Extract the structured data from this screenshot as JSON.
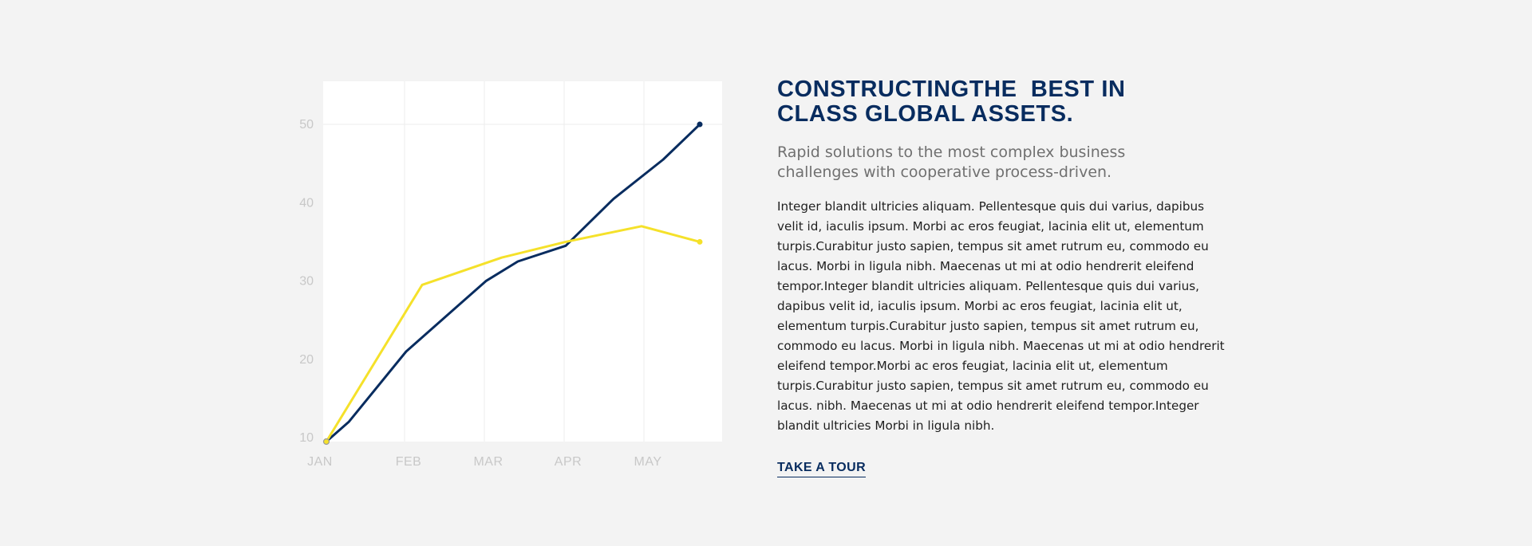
{
  "chart_data": {
    "type": "line",
    "title": "",
    "xlabel": "",
    "ylabel": "",
    "x": [
      "JAN",
      "FEB",
      "MAR",
      "APR",
      "MAY"
    ],
    "y_ticks": [
      10,
      20,
      30,
      40,
      50
    ],
    "ylim": [
      9.5,
      55.5
    ],
    "grid": true,
    "legend": "none",
    "series": [
      {
        "color": "#082c5f",
        "marker_at_end": true,
        "points": [
          [
            0,
            9.5
          ],
          [
            0.28,
            12
          ],
          [
            1.0,
            21
          ],
          [
            2.0,
            30
          ],
          [
            2.4,
            32.5
          ],
          [
            3.0,
            34.5
          ],
          [
            3.6,
            40.5
          ],
          [
            4.22,
            45.5
          ],
          [
            4.68,
            50
          ]
        ]
      },
      {
        "color": "#f5e12a",
        "marker_at_end": true,
        "points": [
          [
            0,
            9.5
          ],
          [
            1.2,
            29.5
          ],
          [
            2.2,
            33
          ],
          [
            3.0,
            35
          ],
          [
            3.95,
            37
          ],
          [
            4.68,
            35
          ]
        ]
      }
    ],
    "colors": {
      "tick_label": "#c8c8c8",
      "grid": "#ececec",
      "plot_bg": "#ffffff",
      "start_marker": "#9a9a9a"
    }
  },
  "content": {
    "title": "CONSTRUCTINGTHE  BEST IN\nCLASS GLOBAL ASSETS.",
    "subtitle": "Rapid solutions to the most complex business challenges with cooperative process-driven.",
    "body": "Integer blandit ultricies aliquam. Pellentesque quis dui varius, dapibus velit id, iaculis ipsum. Morbi ac eros feugiat, lacinia elit ut, elementum turpis.Curabitur justo sapien, tempus sit amet rutrum eu, commodo eu lacus. Morbi in ligula nibh. Maecenas ut mi at odio hendrerit eleifend tempor.Integer blandit ultricies aliquam. Pellentesque quis dui varius, dapibus velit id, iaculis ipsum. Morbi ac eros feugiat, lacinia elit ut, elementum turpis.Curabitur justo sapien, tempus sit amet rutrum eu, commodo eu lacus. Morbi in ligula nibh. Maecenas ut mi at odio hendrerit eleifend tempor.Morbi ac eros feugiat, lacinia elit ut, elementum turpis.Curabitur justo sapien, tempus sit amet rutrum eu, commodo eu lacus. nibh. Maecenas ut mi at odio hendrerit eleifend tempor.Integer blandit ultricies Morbi in ligula nibh.",
    "cta_label": "TAKE A TOUR"
  }
}
